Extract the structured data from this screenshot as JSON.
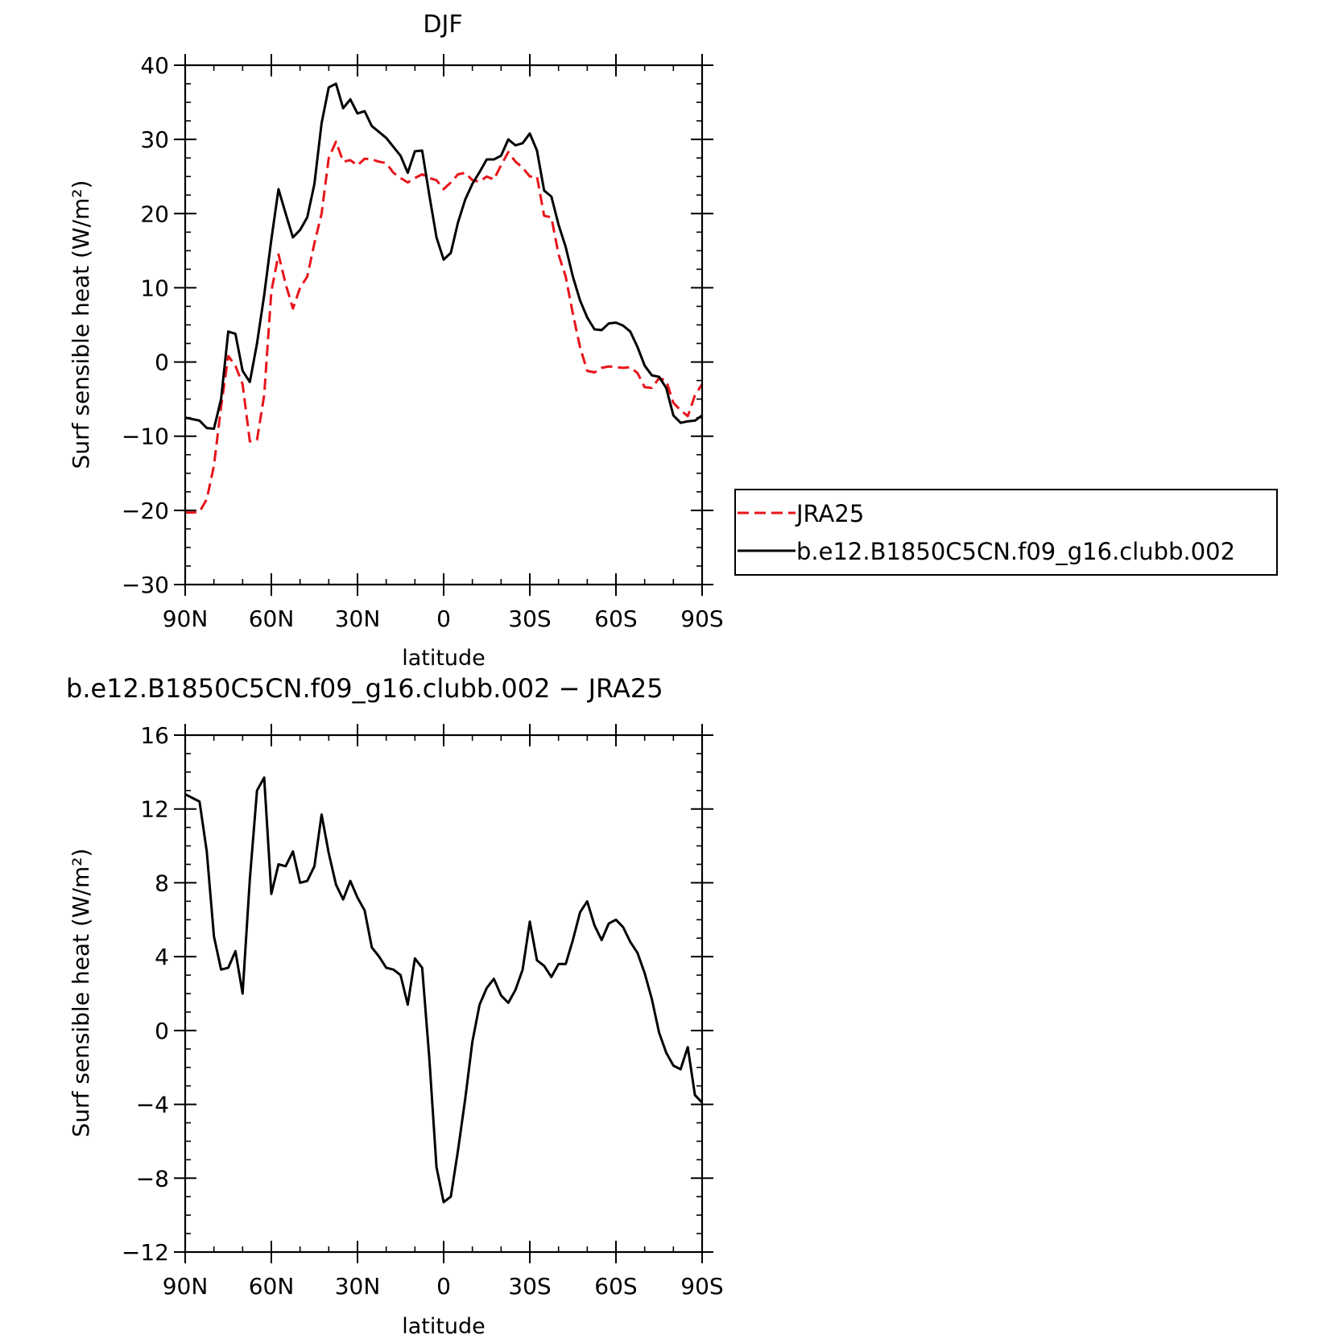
{
  "chart_data": [
    {
      "type": "line",
      "title": "DJF",
      "xlabel": "latitude",
      "ylabel": "Surf sensible heat (W/m²)",
      "ylim": [
        -30,
        40
      ],
      "xlim": [
        -90,
        90
      ],
      "x_tick_values": [
        -90,
        -60,
        -30,
        0,
        30,
        60,
        90
      ],
      "x_tick_labels": [
        "90N",
        "60N",
        "30N",
        "0",
        "30S",
        "60S",
        "90S"
      ],
      "y_ticks": [
        -30,
        -20,
        -10,
        0,
        10,
        20,
        30,
        40
      ],
      "y_tick_labels": [
        "−30",
        "−20",
        "−10",
        "0",
        "10",
        "20",
        "30",
        "40"
      ],
      "legend_position": "right",
      "series": [
        {
          "name": "JRA25",
          "color": "#e8141b",
          "dash": "dashed",
          "x": [
            -90,
            -87.5,
            -85,
            -82.5,
            -80,
            -77.5,
            -75,
            -72.5,
            -70,
            -67.5,
            -65,
            -62.5,
            -60,
            -57.5,
            -55,
            -52.5,
            -50,
            -47.5,
            -45,
            -42.5,
            -40,
            -37.5,
            -35,
            -32.5,
            -30,
            -27.5,
            -25,
            -22.5,
            -20,
            -17.5,
            -15,
            -12.5,
            -10,
            -7.5,
            -5,
            -2.5,
            0,
            2.5,
            5,
            7.5,
            10,
            12.5,
            15,
            17.5,
            20,
            22.5,
            25,
            27.5,
            30,
            32.5,
            35,
            37.5,
            40,
            42.5,
            45,
            47.5,
            50,
            52.5,
            55,
            57.5,
            60,
            62.5,
            65,
            67.5,
            70,
            72.5,
            75,
            77.5,
            80,
            82.5,
            85,
            87.5,
            90
          ],
          "y": [
            -20.3,
            -20.3,
            -20.2,
            -18.5,
            -14,
            -6,
            0.8,
            -0.5,
            -3,
            -10.7,
            -10.5,
            -4.5,
            9.5,
            14.5,
            10.5,
            7.2,
            10,
            11.5,
            16,
            20,
            27.5,
            29.7,
            27,
            27.2,
            26.5,
            27.4,
            27.3,
            27,
            26.8,
            25.5,
            24.8,
            24.2,
            24.8,
            25.3,
            24.8,
            24.5,
            23.3,
            24.2,
            25.3,
            25.5,
            24.5,
            24.3,
            25,
            24.6,
            26.5,
            28.3,
            27,
            26.2,
            25,
            25,
            19.7,
            19.5,
            14.5,
            11.5,
            6.5,
            2,
            -1.2,
            -1.4,
            -0.8,
            -0.6,
            -0.7,
            -0.8,
            -0.7,
            -1.5,
            -3.4,
            -3.5,
            -2.2,
            -2.5,
            -5.5,
            -6.5,
            -7.3,
            -4.5,
            -3.0
          ]
        },
        {
          "name": "b.e12.B1850C5CN.f09_g16.clubb.002",
          "color": "#000000",
          "dash": "solid",
          "x": [
            -90,
            -87.5,
            -85,
            -82.5,
            -80,
            -77.5,
            -75,
            -72.5,
            -70,
            -67.5,
            -65,
            -62.5,
            -60,
            -57.5,
            -55,
            -52.5,
            -50,
            -47.5,
            -45,
            -42.5,
            -40,
            -37.5,
            -35,
            -32.5,
            -30,
            -27.5,
            -25,
            -22.5,
            -20,
            -17.5,
            -15,
            -12.5,
            -10,
            -7.5,
            -5,
            -2.5,
            0,
            2.5,
            5,
            7.5,
            10,
            12.5,
            15,
            17.5,
            20,
            22.5,
            25,
            27.5,
            30,
            32.5,
            35,
            37.5,
            40,
            42.5,
            45,
            47.5,
            50,
            52.5,
            55,
            57.5,
            60,
            62.5,
            65,
            67.5,
            70,
            72.5,
            75,
            77.5,
            80,
            82.5,
            85,
            87.5,
            90
          ],
          "y": [
            -7.5,
            -7.7,
            -7.9,
            -8.9,
            -9,
            -5,
            4.1,
            3.8,
            -1.2,
            -2.7,
            2.5,
            9,
            16.5,
            23.3,
            20,
            16.8,
            17.8,
            19.5,
            24,
            32.2,
            37,
            37.5,
            34.2,
            35.4,
            33.5,
            33.8,
            31.8,
            31,
            30.2,
            29,
            27.8,
            25.5,
            28.4,
            28.5,
            22.5,
            16.8,
            13.8,
            14.7,
            18.8,
            21.9,
            24,
            25.6,
            27.3,
            27.3,
            27.8,
            30,
            29.2,
            29.5,
            30.8,
            28.5,
            23.1,
            22.3,
            18.5,
            15.5,
            11.5,
            8.3,
            6,
            4.4,
            4.3,
            5.2,
            5.3,
            4.9,
            4.1,
            2,
            -0.5,
            -1.8,
            -2,
            -3.5,
            -7.2,
            -8.2,
            -8,
            -7.9,
            -7.2
          ]
        }
      ]
    },
    {
      "type": "line",
      "title": "b.e12.B1850C5CN.f09_g16.clubb.002 − JRA25",
      "xlabel": "latitude",
      "ylabel": "Surf sensible heat (W/m²)",
      "ylim": [
        -12,
        16
      ],
      "xlim": [
        -90,
        90
      ],
      "x_tick_values": [
        -90,
        -60,
        -30,
        0,
        30,
        60,
        90
      ],
      "x_tick_labels": [
        "90N",
        "60N",
        "30N",
        "0",
        "30S",
        "60S",
        "90S"
      ],
      "y_ticks": [
        -12,
        -8,
        -4,
        0,
        4,
        8,
        12,
        16
      ],
      "y_tick_labels": [
        "−12",
        "−8",
        "−4",
        "0",
        "4",
        "8",
        "12",
        "16"
      ],
      "series": [
        {
          "color": "#000000",
          "dash": "solid",
          "x": [
            -90,
            -87.5,
            -85,
            -82.5,
            -80,
            -77.5,
            -75,
            -72.5,
            -70,
            -67.5,
            -65,
            -62.5,
            -60,
            -57.5,
            -55,
            -52.5,
            -50,
            -47.5,
            -45,
            -42.5,
            -40,
            -37.5,
            -35,
            -32.5,
            -30,
            -27.5,
            -25,
            -22.5,
            -20,
            -17.5,
            -15,
            -12.5,
            -10,
            -7.5,
            -5,
            -2.5,
            0,
            2.5,
            5,
            7.5,
            10,
            12.5,
            15,
            17.5,
            20,
            22.5,
            25,
            27.5,
            30,
            32.5,
            35,
            37.5,
            40,
            42.5,
            45,
            47.5,
            50,
            52.5,
            55,
            57.5,
            60,
            62.5,
            65,
            67.5,
            70,
            72.5,
            75,
            77.5,
            80,
            82.5,
            85,
            87.5,
            90
          ],
          "y": [
            12.8,
            12.6,
            12.4,
            9.7,
            5.1,
            3.3,
            3.4,
            4.3,
            2,
            8.2,
            13,
            13.7,
            7.4,
            9,
            8.9,
            9.7,
            8,
            8.1,
            8.9,
            11.7,
            9.6,
            7.9,
            7.1,
            8.1,
            7.2,
            6.5,
            4.5,
            4.0,
            3.4,
            3.3,
            3.0,
            1.4,
            3.9,
            3.4,
            -1.5,
            -7.4,
            -9.3,
            -9.0,
            -6.5,
            -3.7,
            -0.6,
            1.4,
            2.3,
            2.8,
            1.9,
            1.5,
            2.2,
            3.3,
            5.9,
            3.8,
            3.5,
            2.9,
            3.6,
            3.6,
            4.9,
            6.4,
            7.0,
            5.7,
            4.9,
            5.8,
            6.0,
            5.6,
            4.8,
            4.2,
            3.1,
            1.7,
            -0.1,
            -1.2,
            -1.9,
            -2.1,
            -0.9,
            -3.5,
            -3.9
          ]
        }
      ]
    }
  ]
}
